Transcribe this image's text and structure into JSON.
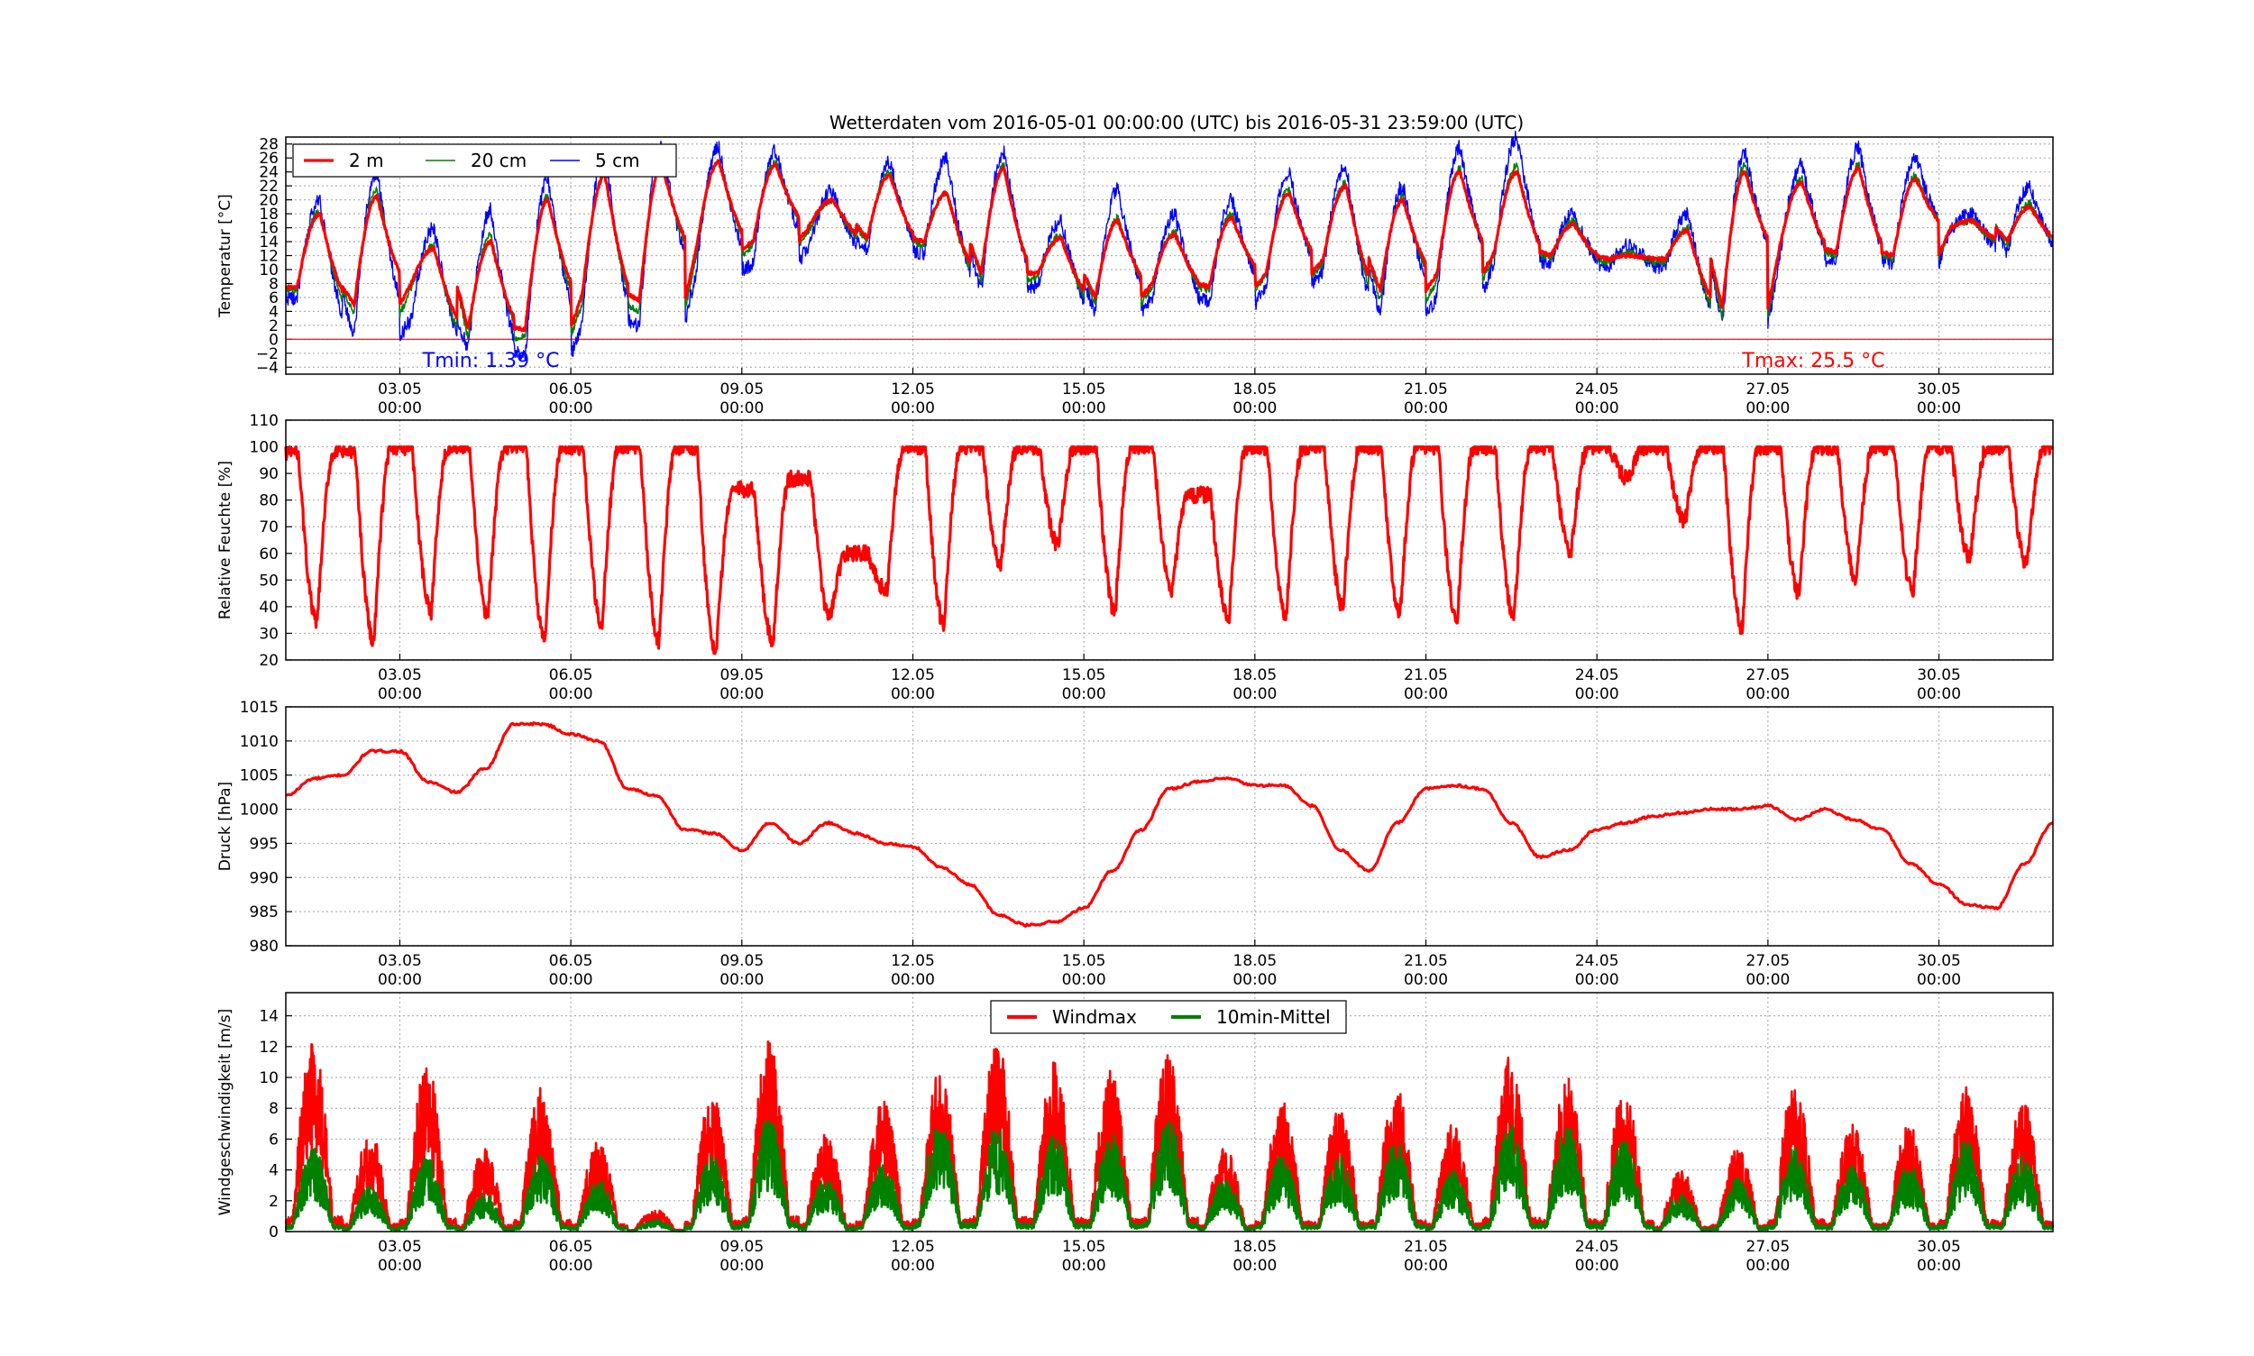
{
  "figure": {
    "title": "Wetterdaten vom 2016-05-01 00:00:00 (UTC) bis 2016-05-31 23:59:00 (UTC)"
  },
  "chart_data": [
    {
      "type": "line",
      "id": "temperature",
      "title": "Wetterdaten vom 2016-05-01 00:00:00 (UTC) bis 2016-05-31 23:59:00 (UTC)",
      "xlabel": "",
      "ylabel": "Temperatur [°C]",
      "x_unit": "days since 2016-05-01 00:00",
      "xlim": [
        0,
        31
      ],
      "ylim": [
        -5,
        29
      ],
      "yticks": [
        -4,
        -2,
        0,
        2,
        4,
        6,
        8,
        10,
        12,
        14,
        16,
        18,
        20,
        22,
        24,
        26,
        28
      ],
      "xtick_labels": [
        {
          "day": 2,
          "line1": "03.05",
          "line2": "00:00"
        },
        {
          "day": 5,
          "line1": "06.05",
          "line2": "00:00"
        },
        {
          "day": 8,
          "line1": "09.05",
          "line2": "00:00"
        },
        {
          "day": 11,
          "line1": "12.05",
          "line2": "00:00"
        },
        {
          "day": 14,
          "line1": "15.05",
          "line2": "00:00"
        },
        {
          "day": 17,
          "line1": "18.05",
          "line2": "00:00"
        },
        {
          "day": 20,
          "line1": "21.05",
          "line2": "00:00"
        },
        {
          "day": 23,
          "line1": "24.05",
          "line2": "00:00"
        },
        {
          "day": 26,
          "line1": "27.05",
          "line2": "00:00"
        },
        {
          "day": 29,
          "line1": "30.05",
          "line2": "00:00"
        }
      ],
      "grid": true,
      "legend": "top-left",
      "zero_line_color": "#ff0000",
      "series": [
        {
          "name": "2 m",
          "color": "#ff0000",
          "daily_min": [
            7.5,
            5.0,
            8.0,
            1.5,
            1.5,
            6.5,
            5.5,
            13.0,
            14.0,
            16.5,
            14.5,
            14.0,
            9.5,
            9.5,
            6.0,
            8.0,
            7.5,
            9.5,
            11.5,
            7.0,
            9.5,
            12.5,
            12.0,
            11.5,
            11.5,
            4.5,
            13.0,
            12.5,
            12.0,
            16.0,
            14.0
          ],
          "daily_max": [
            18.0,
            20.5,
            13.0,
            14.0,
            20.0,
            23.5,
            25.0,
            25.5,
            25.0,
            20.0,
            23.5,
            21.0,
            24.5,
            14.5,
            17.0,
            15.0,
            17.5,
            21.0,
            22.0,
            20.0,
            24.0,
            24.0,
            16.5,
            12.0,
            15.5,
            24.0,
            22.5,
            24.5,
            23.0,
            17.0,
            19.0
          ]
        },
        {
          "name": "20 cm",
          "color": "#008000",
          "daily_min": [
            7.0,
            3.5,
            7.5,
            0.0,
            0.5,
            5.0,
            4.0,
            12.0,
            13.5,
            16.0,
            14.0,
            13.5,
            8.5,
            9.0,
            5.0,
            7.5,
            7.0,
            9.0,
            11.0,
            5.5,
            8.5,
            12.0,
            11.5,
            11.0,
            11.0,
            3.0,
            12.5,
            12.0,
            11.5,
            16.0,
            13.5
          ],
          "daily_max": [
            18.5,
            21.5,
            13.5,
            15.0,
            20.5,
            24.0,
            25.5,
            25.5,
            25.5,
            20.0,
            24.0,
            21.0,
            25.0,
            15.0,
            17.5,
            15.5,
            18.0,
            21.5,
            22.5,
            20.5,
            24.5,
            25.0,
            17.0,
            12.5,
            16.0,
            25.0,
            23.0,
            25.0,
            23.5,
            17.0,
            19.5
          ]
        },
        {
          "name": "5 cm",
          "color": "#0000ff",
          "daily_min": [
            6.0,
            0.5,
            3.0,
            -1.5,
            -2.5,
            2.5,
            2.0,
            10.0,
            11.0,
            14.0,
            12.5,
            12.5,
            7.0,
            8.0,
            4.0,
            6.0,
            5.0,
            8.0,
            10.0,
            3.0,
            6.5,
            11.0,
            11.0,
            10.5,
            10.5,
            2.0,
            11.5,
            11.5,
            11.0,
            15.5,
            12.5
          ],
          "daily_max": [
            20.0,
            24.0,
            16.0,
            18.5,
            23.0,
            27.0,
            28.0,
            27.5,
            27.0,
            21.5,
            25.5,
            26.0,
            27.0,
            17.0,
            21.5,
            18.0,
            20.0,
            24.0,
            25.0,
            22.0,
            27.5,
            29.0,
            18.0,
            13.5,
            18.0,
            27.0,
            25.0,
            27.5,
            26.0,
            18.0,
            22.0
          ]
        }
      ],
      "annotations": [
        {
          "text": "Tmin: 1.39 °C",
          "color": "#0000ff",
          "day": 3.6,
          "y": -3.2
        },
        {
          "text": "Tmax: 25.5 °C",
          "color": "#ff0000",
          "day": 26.8,
          "y": -3.2
        }
      ]
    },
    {
      "type": "line",
      "id": "humidity",
      "xlabel": "",
      "ylabel": "Relative Feuchte [%]",
      "x_unit": "days since 2016-05-01 00:00",
      "xlim": [
        0,
        31
      ],
      "ylim": [
        20,
        110
      ],
      "yticks": [
        20,
        30,
        40,
        50,
        60,
        70,
        80,
        90,
        100,
        110
      ],
      "grid": true,
      "series": [
        {
          "name": "",
          "color": "#ff0000",
          "daily_min": [
            34,
            27,
            38,
            36,
            27,
            33,
            27,
            23,
            27,
            36,
            46,
            33,
            56,
            63,
            38,
            46,
            36,
            36,
            40,
            38,
            35,
            36,
            60,
            88,
            72,
            32,
            45,
            50,
            45,
            58,
            56
          ],
          "daily_max": [
            98,
            100,
            100,
            100,
            100,
            100,
            100,
            84,
            88,
            60,
            100,
            100,
            100,
            100,
            100,
            82,
            100,
            100,
            100,
            100,
            100,
            100,
            100,
            100,
            100,
            100,
            100,
            100,
            100,
            100,
            100
          ]
        }
      ]
    },
    {
      "type": "line",
      "id": "pressure",
      "xlabel": "",
      "ylabel": "Druck [hPa]",
      "x_unit": "days since 2016-05-01 00:00",
      "xlim": [
        0,
        31
      ],
      "ylim": [
        980,
        1015
      ],
      "yticks": [
        980,
        985,
        990,
        995,
        1000,
        1005,
        1010,
        1015
      ],
      "grid": true,
      "series": [
        {
          "name": "",
          "color": "#ff0000",
          "x": [
            0.0,
            0.5,
            1.0,
            1.5,
            2.0,
            2.5,
            3.0,
            3.5,
            4.0,
            4.5,
            5.0,
            5.5,
            6.0,
            6.5,
            7.0,
            7.5,
            8.0,
            8.5,
            9.0,
            9.5,
            10.0,
            10.5,
            11.0,
            11.5,
            12.0,
            12.5,
            13.0,
            13.5,
            14.0,
            14.5,
            15.0,
            15.5,
            16.0,
            16.5,
            17.0,
            17.5,
            18.0,
            18.5,
            19.0,
            19.5,
            20.0,
            20.5,
            21.0,
            21.5,
            22.0,
            22.5,
            23.0,
            23.5,
            24.0,
            24.5,
            25.0,
            25.5,
            26.0,
            26.5,
            27.0,
            27.5,
            28.0,
            28.5,
            29.0,
            29.5,
            30.0,
            30.5,
            31.0
          ],
          "values": [
            1002.0,
            1004.5,
            1005.0,
            1008.5,
            1008.5,
            1004.0,
            1002.5,
            1006.0,
            1012.5,
            1012.5,
            1011.0,
            1010.0,
            1003.0,
            1002.0,
            997.0,
            996.5,
            994.0,
            998.0,
            995.0,
            998.0,
            996.5,
            995.0,
            994.5,
            991.5,
            989.0,
            984.5,
            983.0,
            983.5,
            985.5,
            991.0,
            997.0,
            1003.0,
            1004.0,
            1004.5,
            1003.5,
            1003.5,
            1000.5,
            994.0,
            991.0,
            998.0,
            1003.0,
            1003.5,
            1003.0,
            998.0,
            993.0,
            994.0,
            997.0,
            998.0,
            999.0,
            999.5,
            1000.0,
            1000.0,
            1000.5,
            998.5,
            1000.0,
            998.5,
            997.0,
            992.0,
            989.0,
            986.0,
            985.5,
            992.0,
            998.0
          ]
        }
      ]
    },
    {
      "type": "line",
      "id": "wind",
      "xlabel": "",
      "ylabel": "Windgeschwindigkeit [m/s]",
      "x_unit": "days since 2016-05-01 00:00",
      "xlim": [
        0,
        31
      ],
      "ylim": [
        0,
        15.5
      ],
      "yticks": [
        0,
        2,
        4,
        6,
        8,
        10,
        12,
        14
      ],
      "grid": true,
      "legend": "top-center",
      "series": [
        {
          "name": "Windmax",
          "color": "#ff0000",
          "daily_peak": [
            12.5,
            6.5,
            11.0,
            5.5,
            9.5,
            6.0,
            1.5,
            9.0,
            12.5,
            6.5,
            8.5,
            10.5,
            12.5,
            11.0,
            10.5,
            11.5,
            5.5,
            8.5,
            8.0,
            9.5,
            7.0,
            11.5,
            10.0,
            9.5,
            4.0,
            5.5,
            10.0,
            7.0,
            7.0,
            9.5,
            8.5
          ]
        },
        {
          "name": "10min-Mittel",
          "color": "#008000",
          "daily_peak": [
            5.5,
            3.0,
            5.0,
            2.5,
            5.0,
            3.5,
            0.8,
            5.0,
            7.5,
            3.5,
            4.5,
            7.5,
            7.0,
            6.5,
            6.5,
            7.5,
            3.5,
            5.0,
            5.0,
            6.0,
            4.0,
            7.0,
            7.0,
            6.0,
            2.5,
            3.5,
            5.5,
            4.5,
            4.5,
            6.0,
            5.0
          ]
        }
      ]
    }
  ]
}
